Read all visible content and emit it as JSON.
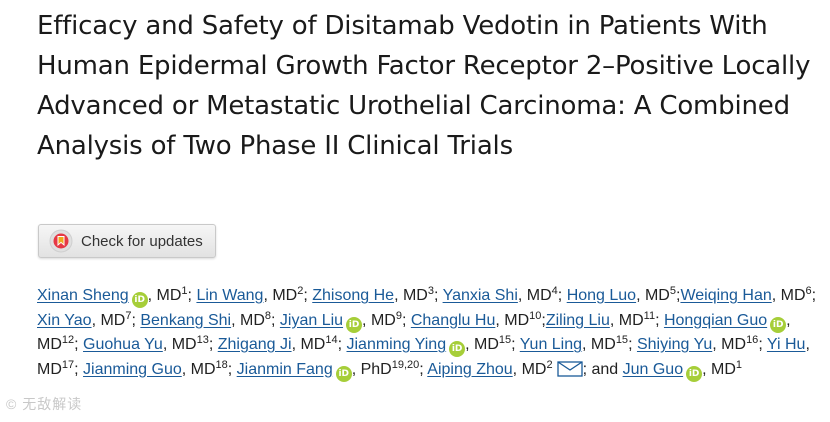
{
  "article": {
    "title": "Efficacy and Safety of Disitamab Vedotin in Patients With Human Epidermal Growth Factor Receptor 2–Positive Locally Advanced or Metastatic Urothelial Carcinoma: A Combined Analysis of Two Phase II Clinical Trials"
  },
  "updates_button": {
    "label": "Check for updates",
    "icon": "crossmark-icon"
  },
  "orcid_badge": "iD",
  "authors": [
    {
      "name": "Xinan Sheng",
      "orcid": true,
      "deg": "MD",
      "aff": "1",
      "after": "; "
    },
    {
      "name": "Lin Wang",
      "deg": "MD",
      "aff": "2",
      "after": "; "
    },
    {
      "name": "Zhisong He",
      "deg": "MD",
      "aff": "3",
      "after": "; "
    },
    {
      "name": "Yanxia Shi",
      "deg": "MD",
      "aff": "4",
      "after": "; "
    },
    {
      "name": "Hong Luo",
      "deg": "MD",
      "aff": "5",
      "after": ";"
    },
    {
      "name": "Weiqing Han",
      "deg": "MD",
      "aff": "6",
      "after": "; "
    },
    {
      "name": "Xin Yao",
      "deg": "MD",
      "aff": "7",
      "after": "; "
    },
    {
      "name": "Benkang Shi",
      "deg": "MD",
      "aff": "8",
      "after": "; "
    },
    {
      "name": "Jiyan Liu",
      "orcid": true,
      "deg": "MD",
      "aff": "9",
      "after": "; "
    },
    {
      "name": "Changlu Hu",
      "deg": "MD",
      "aff": "10",
      "after": ";"
    },
    {
      "name": "Ziling Liu",
      "deg": "MD",
      "aff": "11",
      "after": "; "
    },
    {
      "name": "Hongqian Guo",
      "orcid": true,
      "deg": "MD",
      "aff": "12",
      "after": "; "
    },
    {
      "name": "Guohua Yu",
      "deg": "MD",
      "aff": "13",
      "after": "; "
    },
    {
      "name": "Zhigang Ji",
      "deg": "MD",
      "aff": "14",
      "after": "; "
    },
    {
      "name": "Jianming Ying",
      "orcid": true,
      "deg": "MD",
      "aff": "15",
      "after": "; "
    },
    {
      "name": "Yun Ling",
      "deg": "MD",
      "aff": "15",
      "after": "; "
    },
    {
      "name": "Shiying Yu",
      "deg": "MD",
      "aff": "16",
      "after": "; "
    },
    {
      "name": "Yi Hu",
      "deg": "MD",
      "aff": "17",
      "after": "; "
    },
    {
      "name": "Jianming Guo",
      "deg": "MD",
      "aff": "18",
      "after": "; "
    },
    {
      "name": "Jianmin Fang",
      "orcid": true,
      "deg": "PhD",
      "aff": "19,20",
      "after": "; "
    },
    {
      "name": "Aiping Zhou",
      "deg": "MD",
      "aff": "2",
      "mail": true,
      "after": "; and "
    },
    {
      "name": "Jun Guo",
      "orcid": true,
      "deg": "MD",
      "aff": "1",
      "after": ""
    }
  ],
  "watermark": "© 无敌解读"
}
